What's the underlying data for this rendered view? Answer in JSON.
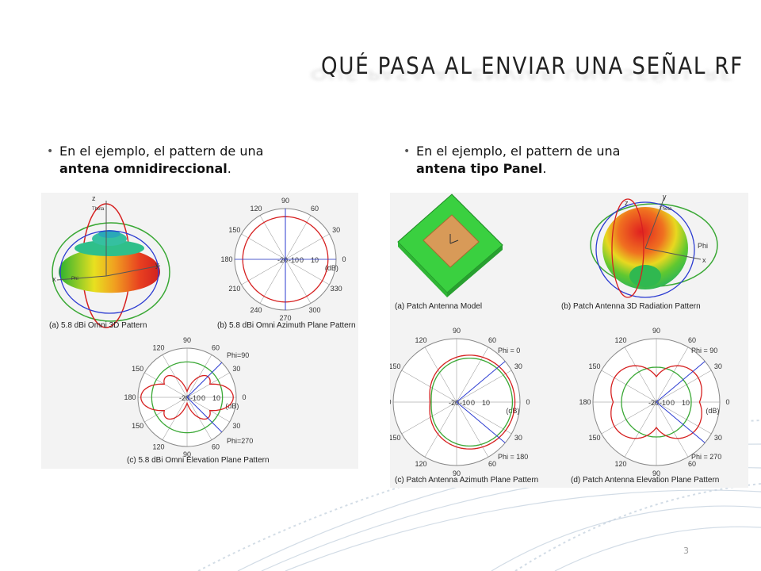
{
  "title": "QUÉ PASA AL ENVIAR UNA SEÑAL RF",
  "bullets": {
    "left": {
      "line1": "En el ejemplo, el pattern de una",
      "bold": "antena omnidireccional",
      "end": "."
    },
    "right": {
      "line1": "En el ejemplo, el pattern de una",
      "bold": "antena tipo Panel",
      "end": "."
    }
  },
  "left_figure": {
    "cap_a": "(a) 5.8 dBi Omni 3D Pattern",
    "cap_b": "(b) 5.8 dBi Omni Azimuth Plane Pattern",
    "cap_c": "(c) 5.8 dBi Omni Elevation Plane Pattern",
    "axis_z": "z",
    "axis_y": "y",
    "axis_x": "x",
    "axis_theta": "Theta",
    "axis_phi": "Phi",
    "azimuth_angles": [
      "90",
      "60",
      "30",
      "0",
      "330",
      "300",
      "270",
      "240",
      "210",
      "180",
      "150",
      "120"
    ],
    "azimuth_db": [
      "-20",
      "-10",
      "0",
      "10",
      "(dB)"
    ],
    "elev_angles": [
      "90",
      "60",
      "30",
      "0",
      "30",
      "60",
      "90",
      "120",
      "150",
      "180",
      "150",
      "120"
    ],
    "elev_db": [
      "-20",
      "-10",
      "0",
      "10",
      "(dB)"
    ],
    "elev_phi_top": "Phi=90",
    "elev_phi_bottom": "Phi=270"
  },
  "right_figure": {
    "cap_a": "(a) Patch Antenna Model",
    "cap_b": "(b) Patch Antenna 3D Radiation Pattern",
    "cap_c": "(c) Patch Antenna Azimuth Plane Pattern",
    "cap_d": "(d) Patch Antenna Elevation Plane Pattern",
    "axis_z": "z",
    "axis_y": "y",
    "axis_x": "x",
    "axis_theta": "Theta",
    "axis_phi": "Phi",
    "azimuth_angles": [
      "90",
      "60",
      "30",
      "0",
      "30",
      "60",
      "90",
      "120",
      "150",
      "180",
      "150",
      "120"
    ],
    "azimuth_db": [
      "-20",
      "-10",
      "0",
      "10",
      "(dB)"
    ],
    "azimuth_phi_top": "Phi = 0",
    "azimuth_phi_bottom": "Phi = 180",
    "elev_angles": [
      "90",
      "60",
      "30",
      "0",
      "30",
      "60",
      "90",
      "120",
      "150",
      "180",
      "150",
      "120"
    ],
    "elev_db": [
      "-20",
      "-10",
      "0",
      "10",
      "(dB)"
    ],
    "elev_phi_top": "Phi = 90",
    "elev_phi_bottom": "Phi = 270"
  },
  "page_number": "3",
  "colors": {
    "red": "#d62020",
    "green": "#3aa835",
    "blue": "#2b3bd1",
    "grid": "#888888"
  }
}
